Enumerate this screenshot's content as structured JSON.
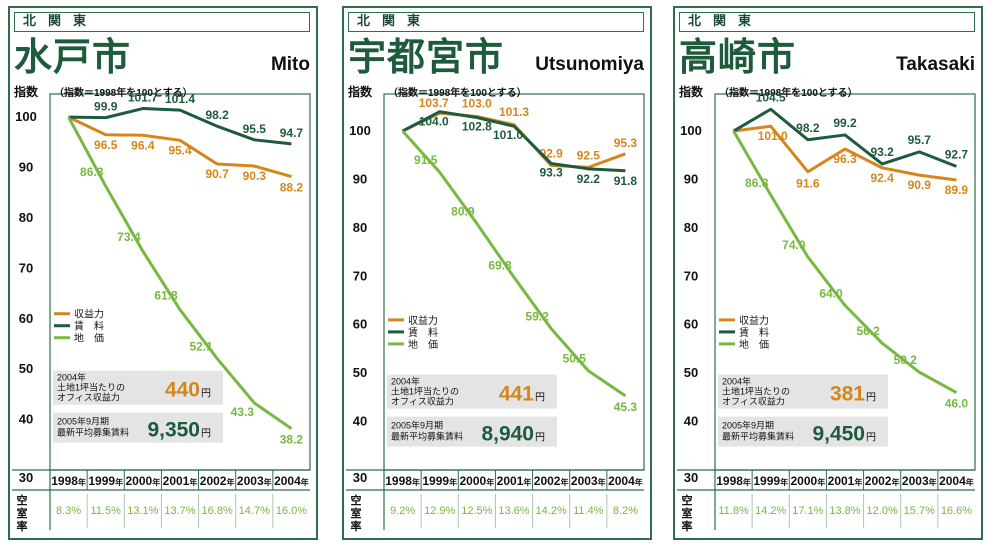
{
  "legend": {
    "revenue": "収益力",
    "rent": "賃　料",
    "land": "地　価"
  },
  "labels": {
    "index_axis": "指数",
    "index_note": "（指数＝1998年を100とする）",
    "vacancy_axis": "空室率",
    "year_suffix": "年",
    "yen_unit": "円"
  },
  "colors": {
    "revenue": "#d4861b",
    "rent": "#1e5b3c",
    "land": "#77b940",
    "frame": "#2f6d4c"
  },
  "chart_data": [
    {
      "type": "line",
      "region": "北関東",
      "city_ja": "水戸市",
      "city_en": "Mito",
      "x": [
        "1998",
        "1999",
        "2000",
        "2001",
        "2002",
        "2003",
        "2004"
      ],
      "y_ticks": [
        100,
        90,
        80,
        70,
        60,
        50,
        40,
        30
      ],
      "ylim": [
        30,
        103
      ],
      "series": [
        {
          "name": "収益力",
          "key": "revenue",
          "values": [
            100,
            96.5,
            96.4,
            95.4,
            90.7,
            90.3,
            88.2
          ]
        },
        {
          "name": "賃　料",
          "key": "rent",
          "values": [
            100,
            99.9,
            101.7,
            101.4,
            98.2,
            95.5,
            94.7
          ]
        },
        {
          "name": "地　価",
          "key": "land",
          "values": [
            100,
            86.3,
            73.4,
            61.8,
            52.1,
            43.3,
            38.2
          ]
        }
      ],
      "vacancy": [
        "8.3%",
        "11.5%",
        "13.1%",
        "13.7%",
        "16.8%",
        "14.7%",
        "16.0%"
      ],
      "box1": {
        "label_line1": "2004年",
        "label_line2": "土地1坪当たりの",
        "label_line3": "オフィス収益力",
        "value": "440"
      },
      "box2": {
        "label_line1": "2005年9月期",
        "label_line2": "最新平均募集賃料",
        "value": "9,350"
      }
    },
    {
      "type": "line",
      "region": "北関東",
      "city_ja": "宇都宮市",
      "city_en": "Utsunomiya",
      "x": [
        "1998",
        "1999",
        "2000",
        "2001",
        "2002",
        "2003",
        "2004"
      ],
      "y_ticks": [
        100,
        90,
        80,
        70,
        60,
        50,
        40,
        30
      ],
      "ylim": [
        30,
        106
      ],
      "series": [
        {
          "name": "収益力",
          "key": "revenue",
          "values": [
            100,
            103.7,
            103.0,
            101.3,
            92.9,
            92.5,
            95.3
          ]
        },
        {
          "name": "賃　料",
          "key": "rent",
          "values": [
            100,
            104.0,
            102.8,
            101.0,
            93.3,
            92.2,
            91.8
          ]
        },
        {
          "name": "地　価",
          "key": "land",
          "values": [
            100,
            91.5,
            80.9,
            69.8,
            59.2,
            50.5,
            45.3
          ]
        }
      ],
      "vacancy": [
        "9.2%",
        "12.9%",
        "12.5%",
        "13.6%",
        "14.2%",
        "11.4%",
        "8.2%"
      ],
      "box1": {
        "label_line1": "2004年",
        "label_line2": "土地1坪当たりの",
        "label_line3": "オフィス収益力",
        "value": "441"
      },
      "box2": {
        "label_line1": "2005年9月期",
        "label_line2": "最新平均募集賃料",
        "value": "8,940"
      }
    },
    {
      "type": "line",
      "region": "北関東",
      "city_ja": "高崎市",
      "city_en": "Takasaki",
      "x": [
        "1998",
        "1999",
        "2000",
        "2001",
        "2002",
        "2003",
        "2004"
      ],
      "y_ticks": [
        100,
        90,
        80,
        70,
        60,
        50,
        40,
        30
      ],
      "ylim": [
        30,
        106
      ],
      "series": [
        {
          "name": "収益力",
          "key": "revenue",
          "values": [
            100,
            101.0,
            91.6,
            96.3,
            92.4,
            90.9,
            89.9
          ]
        },
        {
          "name": "賃　料",
          "key": "rent",
          "values": [
            100,
            104.5,
            98.2,
            99.2,
            93.2,
            95.7,
            92.7
          ]
        },
        {
          "name": "地　価",
          "key": "land",
          "values": [
            100,
            86.8,
            74.0,
            64.0,
            56.2,
            50.2,
            46.0
          ]
        }
      ],
      "vacancy": [
        "11.8%",
        "14.2%",
        "17.1%",
        "13.8%",
        "12.0%",
        "15.7%",
        "16.6%"
      ],
      "box1": {
        "label_line1": "2004年",
        "label_line2": "土地1坪当たりの",
        "label_line3": "オフィス収益力",
        "value": "381"
      },
      "box2": {
        "label_line1": "2005年9月期",
        "label_line2": "最新平均募集賃料",
        "value": "9,450"
      }
    }
  ]
}
